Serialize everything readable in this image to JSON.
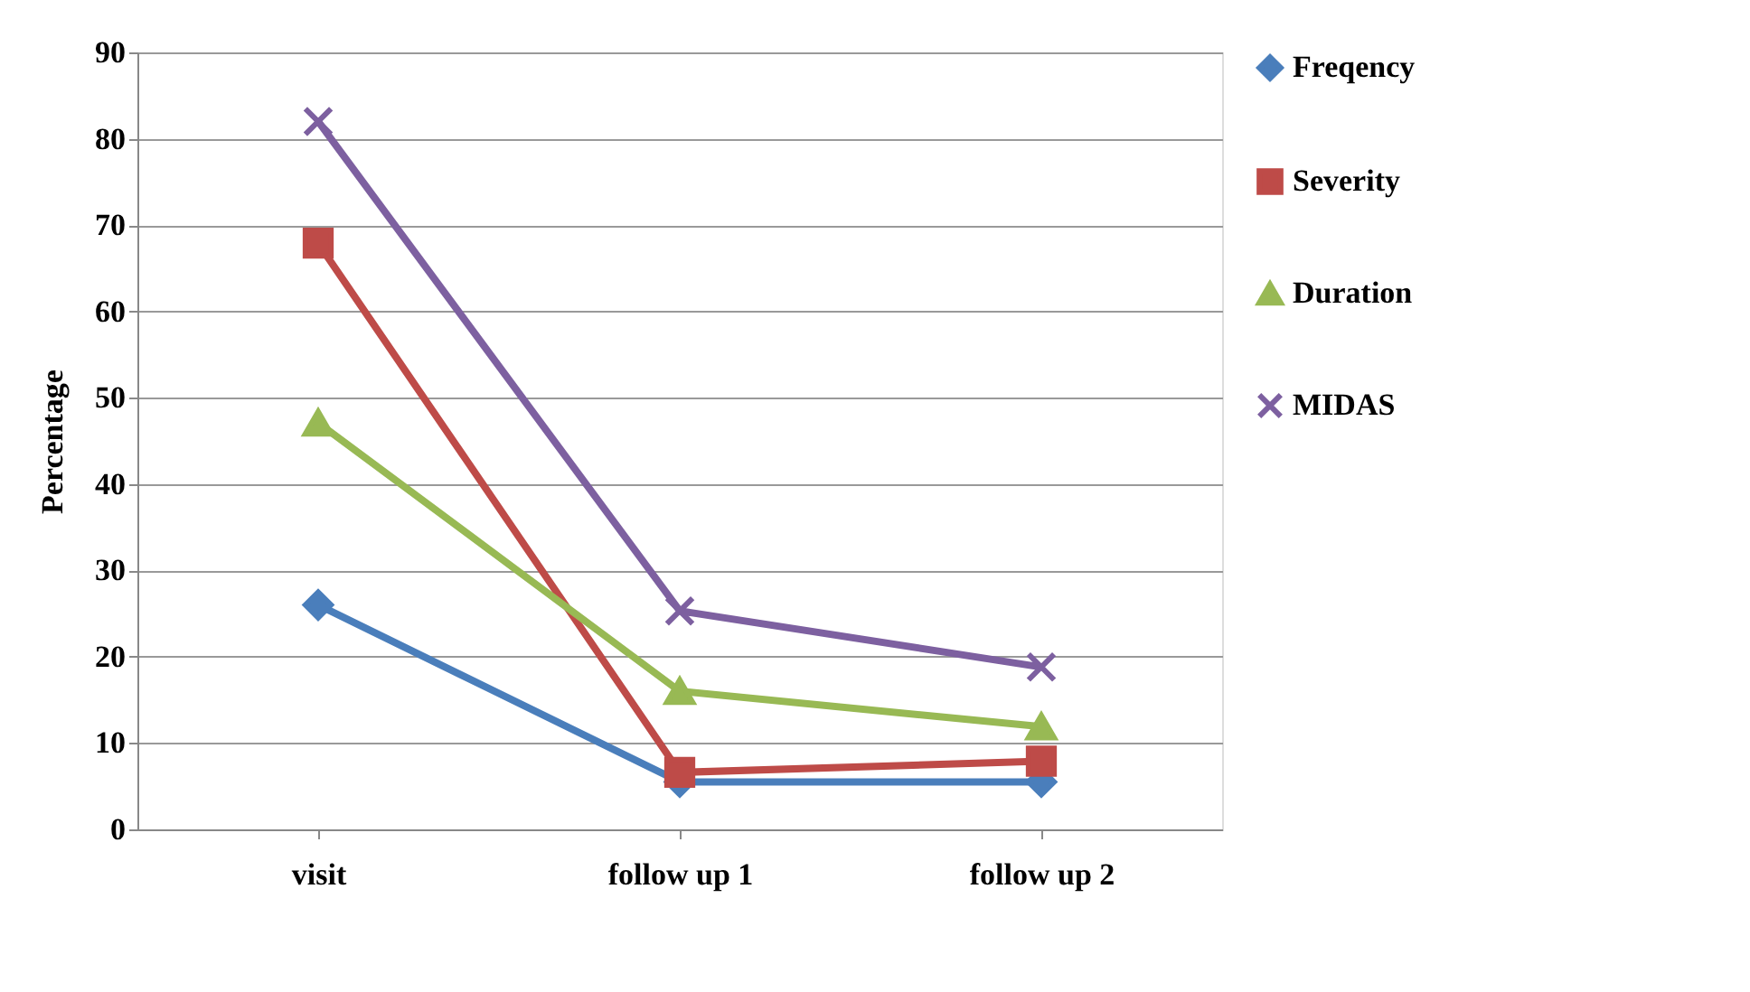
{
  "chart_data": {
    "type": "line",
    "ylabel": "Percentage",
    "categories": [
      "visit",
      "follow up 1",
      "follow up 2"
    ],
    "series": [
      {
        "name": "Freqency",
        "color": "#4a7ebb",
        "marker": "diamond",
        "values": [
          26.0,
          5.5,
          5.5
        ]
      },
      {
        "name": "Severity",
        "color": "#be4b48",
        "marker": "square",
        "values": [
          67.9,
          6.6,
          7.9
        ]
      },
      {
        "name": "Duration",
        "color": "#98b954",
        "marker": "triangle",
        "values": [
          47.1,
          16.0,
          11.9
        ]
      },
      {
        "name": "MIDAS",
        "color": "#7d60a0",
        "marker": "cross",
        "values": [
          82.0,
          25.3,
          18.8
        ]
      }
    ],
    "ylim": [
      0,
      90
    ],
    "yticks": [
      0,
      10,
      20,
      30,
      40,
      50,
      60,
      70,
      80,
      90
    ],
    "grid": "y",
    "legend": "right",
    "line_style": "solid"
  }
}
